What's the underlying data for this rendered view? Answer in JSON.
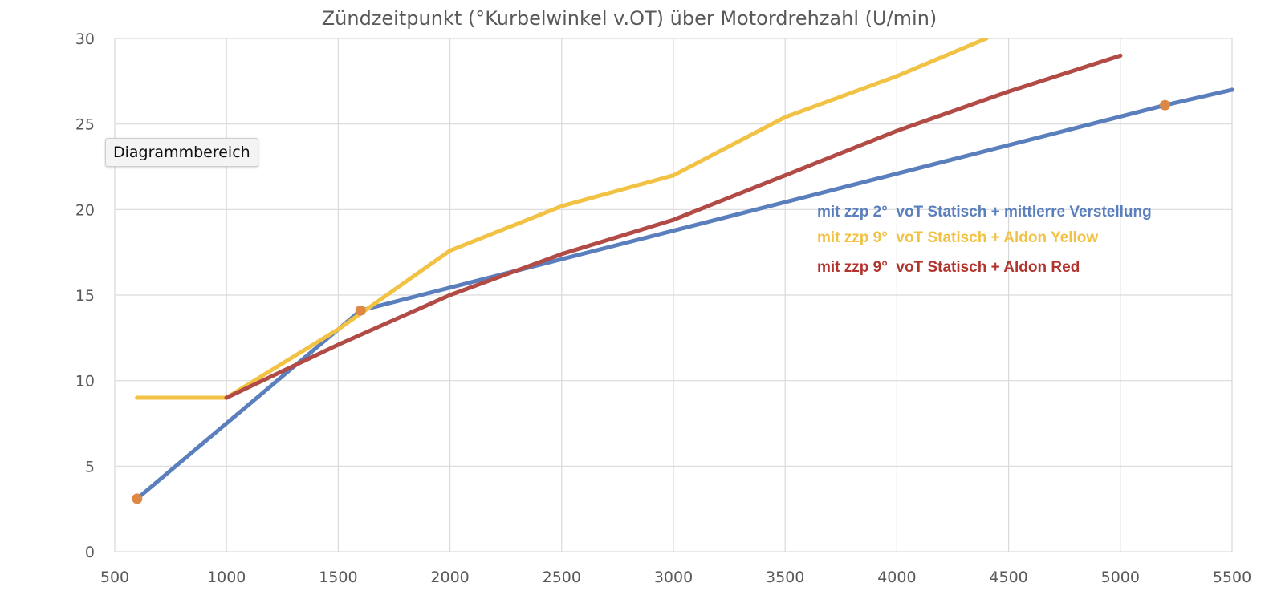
{
  "chart_data": {
    "type": "line",
    "title": "Zündzeitpunkt (°Kurbelwinkel v.OT) über Motordrehzahl (U/min)",
    "xlabel": "",
    "ylabel": "",
    "xlim": [
      500,
      5500
    ],
    "ylim": [
      0,
      30
    ],
    "x_ticks": [
      "500",
      "1000",
      "1500",
      "2000",
      "2500",
      "3000",
      "3500",
      "4000",
      "4500",
      "5000",
      "5500"
    ],
    "y_ticks": [
      "0",
      "5",
      "10",
      "15",
      "20",
      "25",
      "30"
    ],
    "grid": true,
    "series": [
      {
        "name": "mit zzp 2°  voT Statisch + mittlerre Verstellung",
        "color": "#5a7fbc",
        "x": [
          600,
          1600,
          5200,
          5500
        ],
        "y": [
          3.1,
          14.1,
          26.1,
          27
        ]
      },
      {
        "name": "mit zzp 9°  voT Statisch + Aldon Yellow",
        "color": "#f1c244",
        "x": [
          600,
          1000,
          1500,
          2000,
          2500,
          3000,
          3500,
          4000,
          4400
        ],
        "y": [
          9,
          9,
          13,
          17.6,
          20.2,
          22,
          25.4,
          27.8,
          30
        ]
      },
      {
        "name": "mit zzp 9°  voT Statisch + Aldon Red",
        "color": "#b24a46",
        "x": [
          1000,
          1500,
          2000,
          2500,
          3000,
          3500,
          4000,
          4500,
          5000
        ],
        "y": [
          9,
          12.1,
          15,
          17.4,
          19.4,
          22,
          24.6,
          26.9,
          29
        ]
      }
    ],
    "highlight_points": {
      "color": "#dd8844",
      "x": [
        600,
        1600,
        5200
      ],
      "y": [
        3.1,
        14.1,
        26.1
      ]
    },
    "legend": {
      "placement": "right-inside",
      "colors": [
        "#5a7fbc",
        "#f1c244",
        "#b2342e"
      ]
    }
  },
  "tooltip": {
    "text": "Diagrammbereich"
  }
}
